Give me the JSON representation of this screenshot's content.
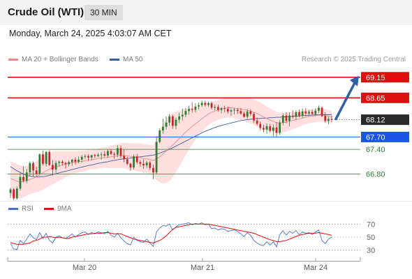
{
  "header": {
    "instrument": "Crude Oil (WTI)",
    "timeframe": "30 MIN",
    "timestamp": "Monday, March 24, 2025 4:03:07 AM CET"
  },
  "legend": {
    "ma20": "MA 20 + Bollinger Bands",
    "ma50": "MA 50",
    "rsi": "RSI",
    "ma9": "9MA"
  },
  "copyright": "Research © 2025 Trading Central",
  "colors": {
    "up": "#2e7d32",
    "down": "#c62828",
    "resistance": "#e01010",
    "support": "#1a56e8",
    "minor_support": "#2e7d32",
    "ma20": "#e88a8a",
    "ma50": "#3b5f9e",
    "band": "#ffd7d7",
    "rsi": "#4a72c4",
    "rsi_ma": "#e01010",
    "arrow": "#2f5fa6",
    "current": "#2a2a2a"
  },
  "chart_data": [
    {
      "type": "candlestick",
      "x_tick_labels": [
        "Mar 20",
        "Mar 21",
        "Mar 24"
      ],
      "ylim": [
        66.15,
        69.4
      ],
      "y_tick_labels": [
        "69.15",
        "68.65",
        "68.12",
        "67.70",
        "67.40",
        "66.80"
      ],
      "current_price": 68.12,
      "levels": [
        {
          "label": "69.15",
          "value": 69.15,
          "kind": "resistance",
          "boxed": true
        },
        {
          "label": "68.65",
          "value": 68.65,
          "kind": "resistance",
          "boxed": true
        },
        {
          "label": "67.70",
          "value": 67.7,
          "kind": "support",
          "boxed": true
        },
        {
          "label": "67.40",
          "value": 67.4,
          "kind": "minor_support",
          "boxed": false
        },
        {
          "label": "66.80",
          "value": 66.8,
          "kind": "minor_support",
          "boxed": false
        }
      ],
      "projection": {
        "from": 68.12,
        "to": 69.15
      },
      "candles": [
        [
          66.34,
          66.47,
          66.22,
          66.43
        ],
        [
          66.43,
          66.46,
          66.17,
          66.21
        ],
        [
          66.21,
          66.5,
          66.18,
          66.45
        ],
        [
          66.45,
          66.82,
          66.4,
          66.73
        ],
        [
          66.73,
          66.98,
          66.6,
          66.64
        ],
        [
          66.64,
          66.93,
          66.58,
          66.84
        ],
        [
          66.84,
          67.11,
          66.76,
          67.07
        ],
        [
          67.07,
          67.11,
          66.74,
          66.89
        ],
        [
          66.89,
          66.98,
          66.74,
          66.81
        ],
        [
          66.81,
          67.3,
          66.79,
          67.28
        ],
        [
          67.28,
          67.37,
          67.01,
          67.05
        ],
        [
          67.05,
          67.36,
          66.98,
          67.34
        ],
        [
          67.34,
          67.38,
          67.0,
          67.02
        ],
        [
          67.02,
          67.14,
          66.77,
          66.91
        ],
        [
          66.91,
          67.13,
          66.83,
          67.07
        ],
        [
          67.07,
          67.13,
          66.98,
          67.1
        ],
        [
          67.1,
          67.14,
          67.01,
          67.07
        ],
        [
          67.07,
          67.1,
          66.93,
          67.04
        ],
        [
          67.04,
          67.13,
          66.98,
          67.09
        ],
        [
          67.09,
          67.17,
          67.0,
          67.15
        ],
        [
          67.15,
          67.21,
          67.03,
          67.1
        ],
        [
          67.1,
          67.23,
          67.06,
          67.15
        ],
        [
          67.15,
          67.26,
          67.08,
          67.22
        ],
        [
          67.22,
          67.28,
          67.16,
          67.24
        ],
        [
          67.24,
          67.28,
          67.12,
          67.2
        ],
        [
          67.2,
          67.27,
          67.13,
          67.26
        ],
        [
          67.26,
          67.29,
          67.19,
          67.24
        ],
        [
          67.24,
          67.31,
          67.21,
          67.27
        ],
        [
          67.27,
          67.33,
          67.15,
          67.28
        ],
        [
          67.28,
          67.36,
          67.22,
          67.25
        ],
        [
          67.25,
          67.4,
          67.2,
          67.36
        ],
        [
          67.36,
          67.41,
          67.26,
          67.29
        ],
        [
          67.29,
          67.34,
          67.17,
          67.27
        ],
        [
          67.27,
          67.5,
          67.21,
          67.43
        ],
        [
          67.43,
          67.5,
          67.18,
          67.24
        ],
        [
          67.24,
          67.39,
          67.09,
          67.16
        ],
        [
          67.16,
          67.22,
          67.02,
          67.05
        ],
        [
          67.05,
          67.08,
          66.88,
          66.96
        ],
        [
          66.96,
          67.28,
          66.91,
          67.23
        ],
        [
          67.23,
          67.29,
          67.04,
          67.09
        ],
        [
          67.09,
          67.14,
          66.98,
          67.05
        ],
        [
          67.05,
          67.16,
          66.93,
          67.01
        ],
        [
          67.01,
          67.12,
          66.95,
          67.08
        ],
        [
          67.08,
          67.12,
          66.9,
          66.95
        ],
        [
          66.95,
          67.03,
          66.68,
          66.84
        ],
        [
          66.84,
          67.72,
          66.81,
          67.58
        ],
        [
          67.58,
          67.91,
          67.55,
          67.86
        ],
        [
          67.86,
          68.15,
          67.78,
          67.95
        ],
        [
          67.95,
          68.2,
          67.88,
          68.05
        ],
        [
          68.05,
          68.26,
          67.97,
          68.2
        ],
        [
          68.2,
          68.24,
          67.9,
          67.97
        ],
        [
          67.97,
          68.17,
          67.89,
          68.12
        ],
        [
          68.12,
          68.29,
          68.04,
          68.2
        ],
        [
          68.2,
          68.39,
          68.1,
          68.24
        ],
        [
          68.24,
          68.4,
          68.18,
          68.33
        ],
        [
          68.33,
          68.46,
          68.24,
          68.38
        ],
        [
          68.38,
          68.54,
          68.29,
          68.36
        ],
        [
          68.36,
          68.52,
          68.3,
          68.44
        ],
        [
          68.44,
          68.54,
          68.37,
          68.47
        ],
        [
          68.47,
          68.59,
          68.43,
          68.53
        ],
        [
          68.53,
          68.58,
          68.44,
          68.48
        ],
        [
          68.48,
          68.56,
          68.43,
          68.52
        ],
        [
          68.52,
          68.56,
          68.37,
          68.41
        ],
        [
          68.41,
          68.49,
          68.35,
          68.43
        ],
        [
          68.43,
          68.49,
          68.32,
          68.36
        ],
        [
          68.36,
          68.43,
          68.27,
          68.4
        ],
        [
          68.4,
          68.46,
          68.3,
          68.38
        ],
        [
          68.38,
          68.44,
          68.27,
          68.32
        ],
        [
          68.32,
          68.39,
          68.22,
          68.35
        ],
        [
          68.35,
          68.41,
          68.25,
          68.36
        ],
        [
          68.36,
          68.41,
          68.26,
          68.33
        ],
        [
          68.33,
          68.4,
          68.24,
          68.27
        ],
        [
          68.27,
          68.32,
          68.17,
          68.19
        ],
        [
          68.19,
          68.38,
          68.14,
          68.32
        ],
        [
          68.32,
          68.37,
          68.21,
          68.26
        ],
        [
          68.26,
          68.3,
          68.04,
          68.1
        ],
        [
          68.1,
          68.17,
          67.98,
          68.02
        ],
        [
          68.02,
          68.08,
          67.86,
          67.92
        ],
        [
          67.92,
          68.0,
          67.82,
          67.88
        ],
        [
          67.88,
          68.03,
          67.78,
          67.96
        ],
        [
          67.96,
          68.02,
          67.81,
          67.85
        ],
        [
          67.85,
          68.0,
          67.72,
          67.93
        ],
        [
          67.93,
          68.06,
          67.71,
          67.8
        ],
        [
          67.8,
          68.11,
          67.75,
          68.05
        ],
        [
          68.05,
          68.27,
          67.98,
          68.22
        ],
        [
          68.22,
          68.3,
          68.03,
          68.09
        ],
        [
          68.09,
          68.3,
          67.96,
          68.22
        ],
        [
          68.22,
          68.35,
          68.14,
          68.19
        ],
        [
          68.19,
          68.35,
          68.12,
          68.3
        ],
        [
          68.3,
          68.37,
          68.18,
          68.22
        ],
        [
          68.22,
          68.39,
          68.16,
          68.32
        ],
        [
          68.32,
          68.4,
          68.2,
          68.27
        ],
        [
          68.27,
          68.36,
          68.2,
          68.31
        ],
        [
          68.31,
          68.37,
          68.24,
          68.26
        ],
        [
          68.26,
          68.4,
          68.21,
          68.34
        ],
        [
          68.34,
          68.46,
          68.28,
          68.41
        ],
        [
          68.41,
          68.44,
          68.18,
          68.21
        ],
        [
          68.21,
          68.3,
          68.05,
          68.09
        ],
        [
          68.09,
          68.19,
          68.01,
          68.14
        ],
        [
          68.14,
          68.22,
          68.06,
          68.12
        ]
      ],
      "ma20": [
        66.7,
        66.66,
        66.63,
        66.61,
        66.62,
        66.64,
        66.67,
        66.7,
        66.74,
        66.78,
        66.83,
        66.88,
        66.92,
        66.95,
        66.98,
        67.0,
        67.02,
        67.04,
        67.06,
        67.08,
        67.09,
        67.1,
        67.11,
        67.12,
        67.14,
        67.15,
        67.16,
        67.18,
        67.19,
        67.2,
        67.21,
        67.22,
        67.23,
        67.24,
        67.25,
        67.25,
        67.24,
        67.23,
        67.22,
        67.21,
        67.2,
        67.18,
        67.17,
        67.15,
        67.13,
        67.16,
        67.22,
        67.29,
        67.36,
        67.43,
        67.5,
        67.58,
        67.66,
        67.74,
        67.82,
        67.89,
        67.96,
        68.02,
        68.08,
        68.14,
        68.2,
        68.26,
        68.3,
        68.33,
        68.36,
        68.38,
        68.4,
        68.41,
        68.41,
        68.4,
        68.39,
        68.38,
        68.36,
        68.35,
        68.33,
        68.3,
        68.27,
        68.23,
        68.19,
        68.15,
        68.11,
        68.08,
        68.05,
        68.04,
        68.05,
        68.06,
        68.08,
        68.1,
        68.12,
        68.14,
        68.16,
        68.18,
        68.2,
        68.21,
        68.22,
        68.23,
        68.23,
        68.22,
        68.2,
        68.18
      ],
      "ma50": [
        66.98,
        66.93,
        66.88,
        66.84,
        66.8,
        66.77,
        66.75,
        66.74,
        66.73,
        66.73,
        66.74,
        66.75,
        66.77,
        66.79,
        66.81,
        66.83,
        66.85,
        66.87,
        66.89,
        66.91,
        66.93,
        66.95,
        66.97,
        66.99,
        67.01,
        67.02,
        67.04,
        67.06,
        67.07,
        67.09,
        67.1,
        67.12,
        67.13,
        67.15,
        67.16,
        67.17,
        67.18,
        67.19,
        67.2,
        67.21,
        67.22,
        67.23,
        67.24,
        67.25,
        67.26,
        67.28,
        67.31,
        67.34,
        67.37,
        67.4,
        67.44,
        67.48,
        67.52,
        67.56,
        67.6,
        67.64,
        67.68,
        67.72,
        67.76,
        67.8,
        67.84,
        67.87,
        67.9,
        67.93,
        67.96,
        67.98,
        68.0,
        68.02,
        68.04,
        68.06,
        68.08,
        68.1,
        68.11,
        68.12,
        68.13,
        68.14,
        68.15,
        68.15,
        68.16,
        68.16,
        68.17,
        68.17,
        68.18,
        68.18,
        68.19,
        68.19,
        68.2,
        68.2,
        68.21,
        68.21,
        68.22,
        68.22,
        68.23,
        68.23,
        68.24,
        68.24,
        68.24,
        68.24,
        68.24,
        68.24
      ],
      "band_width": [
        0.42,
        0.42,
        0.41,
        0.4,
        0.38,
        0.36,
        0.35,
        0.36,
        0.38,
        0.4,
        0.41,
        0.42,
        0.41,
        0.4,
        0.38,
        0.36,
        0.34,
        0.32,
        0.3,
        0.28,
        0.27,
        0.26,
        0.25,
        0.25,
        0.24,
        0.24,
        0.24,
        0.24,
        0.25,
        0.25,
        0.26,
        0.27,
        0.28,
        0.29,
        0.3,
        0.31,
        0.32,
        0.33,
        0.33,
        0.34,
        0.34,
        0.35,
        0.35,
        0.36,
        0.37,
        0.5,
        0.62,
        0.72,
        0.78,
        0.8,
        0.78,
        0.74,
        0.68,
        0.62,
        0.56,
        0.5,
        0.45,
        0.4,
        0.36,
        0.32,
        0.29,
        0.27,
        0.26,
        0.25,
        0.24,
        0.24,
        0.24,
        0.24,
        0.24,
        0.25,
        0.26,
        0.27,
        0.28,
        0.29,
        0.3,
        0.31,
        0.31,
        0.31,
        0.3,
        0.29,
        0.28,
        0.27,
        0.26,
        0.25,
        0.24,
        0.23,
        0.22,
        0.21,
        0.2,
        0.19,
        0.18,
        0.17,
        0.17,
        0.16,
        0.16,
        0.16,
        0.16,
        0.16,
        0.16,
        0.16
      ]
    },
    {
      "type": "line",
      "title": "RSI",
      "ylim": [
        20,
        80
      ],
      "y_tick_labels": [
        "70",
        "50",
        "30"
      ],
      "guides": [
        70,
        50,
        30
      ],
      "series": [
        {
          "name": "RSI",
          "values": [
            40,
            32,
            31,
            45,
            40,
            47,
            55,
            49,
            46,
            57,
            48,
            56,
            45,
            41,
            50,
            52,
            49,
            48,
            51,
            55,
            50,
            54,
            57,
            58,
            54,
            57,
            55,
            58,
            57,
            55,
            59,
            53,
            50,
            56,
            49,
            44,
            40,
            38,
            50,
            45,
            43,
            42,
            47,
            41,
            36,
            58,
            64,
            68,
            67,
            70,
            61,
            66,
            69,
            70,
            71,
            72,
            69,
            71,
            70,
            72,
            69,
            70,
            63,
            64,
            61,
            63,
            62,
            59,
            60,
            61,
            59,
            55,
            51,
            57,
            53,
            45,
            41,
            38,
            37,
            43,
            38,
            43,
            35,
            54,
            60,
            53,
            59,
            56,
            60,
            54,
            58,
            56,
            57,
            54,
            58,
            61,
            45,
            40,
            47,
            50
          ]
        },
        {
          "name": "9MA",
          "values": [
            42,
            40,
            39,
            39,
            39,
            40,
            41,
            44,
            45,
            47,
            50,
            50,
            51,
            50,
            49,
            50,
            49,
            48,
            48,
            50,
            51,
            52,
            53,
            54,
            55,
            55,
            56,
            56,
            56,
            57,
            57,
            56,
            55,
            55,
            55,
            53,
            51,
            49,
            47,
            46,
            45,
            44,
            43,
            42,
            41,
            43,
            45,
            48,
            52,
            57,
            62,
            65,
            66,
            67,
            68,
            69,
            70,
            70,
            70,
            70,
            70,
            70,
            69,
            68,
            67,
            66,
            65,
            64,
            63,
            62,
            61,
            60,
            59,
            58,
            57,
            56,
            54,
            52,
            50,
            48,
            46,
            45,
            43,
            43,
            44,
            45,
            47,
            49,
            51,
            53,
            54,
            55,
            56,
            56,
            56,
            57,
            56,
            55,
            54,
            53
          ]
        }
      ]
    }
  ]
}
